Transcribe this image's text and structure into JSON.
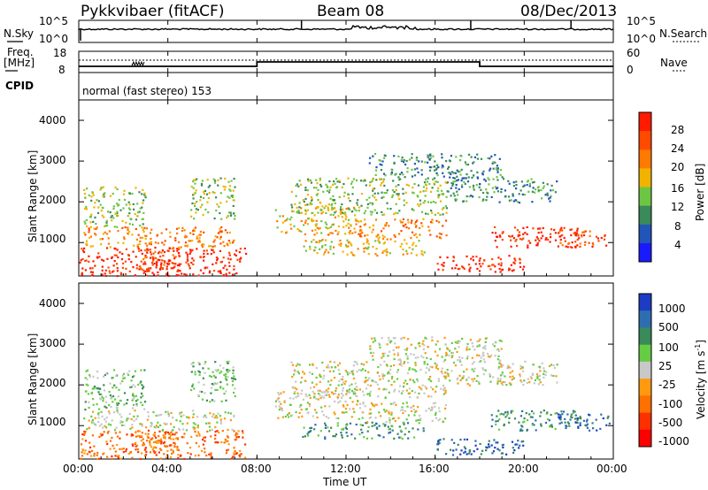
{
  "header": {
    "station": "Pykkvibaer (fitACF)",
    "beam": "Beam 08",
    "date": "08/Dec/2013"
  },
  "strips": {
    "nsky": {
      "label": "N.Sky",
      "ticks": [
        "10^5",
        "10^0"
      ]
    },
    "nsearch": {
      "label": "N.Search",
      "ticks": [
        "10^5",
        "10^0"
      ]
    },
    "freq": {
      "label_line1": "Freq.",
      "label_line2": "[MHz]",
      "ticks": [
        "18",
        "8"
      ]
    },
    "nave": {
      "label": "Nave",
      "ticks": [
        "60",
        "0"
      ]
    },
    "cpid": {
      "label": "CPID",
      "text": "normal (fast stereo) 153"
    }
  },
  "chart_data": [
    {
      "type": "line",
      "name": "N.Sky / N.Search",
      "x": [
        "00:00",
        "04:00",
        "08:00",
        "12:00",
        "16:00",
        "20:00",
        "00:00"
      ],
      "yscale": "log",
      "ylim": [
        1,
        100000
      ],
      "spikes_hours": [
        10.0,
        17.6,
        22.1
      ]
    },
    {
      "type": "line",
      "name": "Freq / Nave",
      "frequency_ticks": [
        8,
        18
      ],
      "nave_ticks": [
        0,
        60
      ],
      "nave_step_hours": [
        8.0,
        18.0
      ]
    },
    {
      "type": "heatmap",
      "title": "Power",
      "ylabel": "Slant Range [km]",
      "xlabel": "Time UT",
      "xlim_hours": [
        0,
        24
      ],
      "ylim": [
        180,
        4500
      ],
      "y_ticks": [
        1000,
        2000,
        3000,
        4000
      ],
      "x_ticks": [
        "00:00",
        "04:00",
        "08:00",
        "12:00",
        "16:00",
        "20:00",
        "00:00"
      ],
      "colorbar": {
        "label": "Power [dB]",
        "ticks": [
          "4",
          "8",
          "12",
          "16",
          "20",
          "24",
          "28"
        ],
        "colors": [
          "#1a1aff",
          "#2255b8",
          "#3a8a5a",
          "#6cc644",
          "#f2b300",
          "#ff7a00",
          "#ff4a00",
          "#ff1a00"
        ]
      }
    },
    {
      "type": "heatmap",
      "title": "Velocity",
      "ylabel": "Slant Range [km]",
      "xlabel": "Time UT",
      "xlim_hours": [
        0,
        24
      ],
      "ylim": [
        180,
        4500
      ],
      "y_ticks": [
        1000,
        2000,
        3000,
        4000
      ],
      "x_ticks": [
        "00:00",
        "04:00",
        "08:00",
        "12:00",
        "16:00",
        "20:00",
        "00:00"
      ],
      "colorbar": {
        "label": "Velocity [m s^-1]",
        "ticks": [
          "1000",
          "500",
          "100",
          "25",
          "-25",
          "-100",
          "-500",
          "-1000"
        ],
        "colors": [
          "#1c3cc4",
          "#2e6eb0",
          "#3a8a5a",
          "#66cc44",
          "#c8c8c8",
          "#ff9a10",
          "#ff7000",
          "#ff3000",
          "#ff0000"
        ]
      }
    }
  ],
  "axis": {
    "power_ylabel": "Slant Range [km]",
    "velocity_ylabel": "Slant Range [km]",
    "xlabel": "Time UT",
    "x_ticks": [
      "00:00",
      "04:00",
      "08:00",
      "12:00",
      "16:00",
      "20:00",
      "00:00"
    ],
    "y_ticks": [
      "1000",
      "2000",
      "3000",
      "4000"
    ]
  },
  "colorbars": {
    "power_label": "Power [dB]",
    "power_ticks": [
      "28",
      "24",
      "20",
      "16",
      "12",
      "8",
      "4"
    ],
    "velocity_label_main": "Velocity [m s",
    "velocity_label_sup": "-1",
    "velocity_label_end": "]",
    "velocity_ticks": [
      "1000",
      "500",
      "100",
      "25",
      "-25",
      "-100",
      "-500",
      "-1000"
    ]
  }
}
